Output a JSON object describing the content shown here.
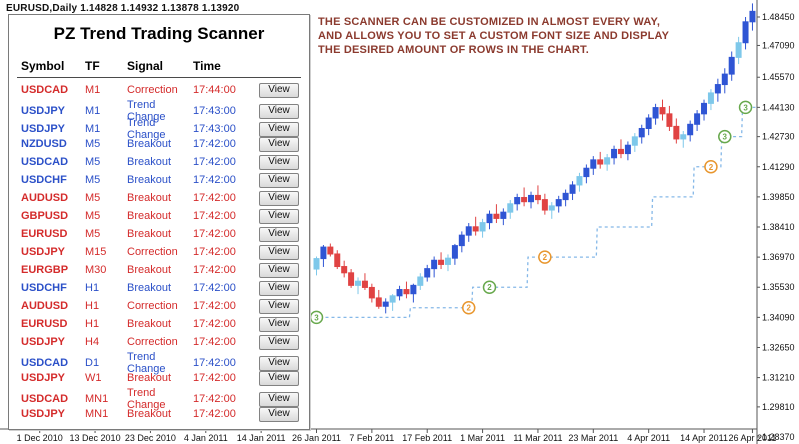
{
  "window": {
    "quote_line": "EURUSD,Daily  1.14828 1.14932 1.13878 1.13920"
  },
  "annotation": {
    "color": "#8b3a2e",
    "lines": [
      "THE SCANNER CAN BE CUSTOMIZED IN ALMOST EVERY WAY,",
      "AND ALLOWS YOU TO SET A CUSTOM FONT SIZE AND DISPLAY",
      "THE DESIRED AMOUNT OF ROWS IN THE CHART."
    ]
  },
  "scanner": {
    "title": "PZ Trend Trading Scanner",
    "columns": [
      "Symbol",
      "TF",
      "Signal",
      "Time"
    ],
    "view_label": "View",
    "colors": {
      "red": "#d42b2b",
      "blue": "#2b50c8"
    },
    "rows": [
      {
        "symbol": "USDCAD",
        "tf": "M1",
        "signal": "Correction",
        "time": "17:44:00",
        "color": "red"
      },
      {
        "symbol": "USDJPY",
        "tf": "M1",
        "signal": "Trend Change",
        "time": "17:43:00",
        "color": "blue"
      },
      {
        "symbol": "USDJPY",
        "tf": "M1",
        "signal": "Trend Change",
        "time": "17:43:00",
        "color": "blue"
      },
      {
        "symbol": "NZDUSD",
        "tf": "M5",
        "signal": "Breakout",
        "time": "17:42:00",
        "color": "blue"
      },
      {
        "symbol": "USDCAD",
        "tf": "M5",
        "signal": "Breakout",
        "time": "17:42:00",
        "color": "blue"
      },
      {
        "symbol": "USDCHF",
        "tf": "M5",
        "signal": "Breakout",
        "time": "17:42:00",
        "color": "blue"
      },
      {
        "symbol": "AUDUSD",
        "tf": "M5",
        "signal": "Breakout",
        "time": "17:42:00",
        "color": "red"
      },
      {
        "symbol": "GBPUSD",
        "tf": "M5",
        "signal": "Breakout",
        "time": "17:42:00",
        "color": "red"
      },
      {
        "symbol": "EURUSD",
        "tf": "M5",
        "signal": "Breakout",
        "time": "17:42:00",
        "color": "red"
      },
      {
        "symbol": "USDJPY",
        "tf": "M15",
        "signal": "Correction",
        "time": "17:42:00",
        "color": "red"
      },
      {
        "symbol": "EURGBP",
        "tf": "M30",
        "signal": "Breakout",
        "time": "17:42:00",
        "color": "red"
      },
      {
        "symbol": "USDCHF",
        "tf": "H1",
        "signal": "Breakout",
        "time": "17:42:00",
        "color": "blue"
      },
      {
        "symbol": "AUDUSD",
        "tf": "H1",
        "signal": "Correction",
        "time": "17:42:00",
        "color": "red"
      },
      {
        "symbol": "EURUSD",
        "tf": "H1",
        "signal": "Breakout",
        "time": "17:42:00",
        "color": "red"
      },
      {
        "symbol": "USDJPY",
        "tf": "H4",
        "signal": "Correction",
        "time": "17:42:00",
        "color": "red"
      },
      {
        "symbol": "USDCAD",
        "tf": "D1",
        "signal": "Trend Change",
        "time": "17:42:00",
        "color": "blue"
      },
      {
        "symbol": "USDJPY",
        "tf": "W1",
        "signal": "Breakout",
        "time": "17:42:00",
        "color": "red"
      },
      {
        "symbol": "USDCAD",
        "tf": "MN1",
        "signal": "Trend Change",
        "time": "17:42:00",
        "color": "red"
      },
      {
        "symbol": "USDJPY",
        "tf": "MN1",
        "signal": "Breakout",
        "time": "17:42:00",
        "color": "red"
      }
    ]
  },
  "chart_data": {
    "type": "candlestick",
    "title": "EURUSD,Daily",
    "ylim": [
      1.2837,
      1.491
    ],
    "colors": {
      "up": "#2f55d4",
      "up_light": "#7ec8ea",
      "down": "#e04343"
    },
    "price_axis": [
      "1.48450",
      "1.47090",
      "1.45570",
      "1.44130",
      "1.42730",
      "1.41290",
      "1.39850",
      "1.38410",
      "1.36970",
      "1.35530",
      "1.34090",
      "1.32650",
      "1.31210",
      "1.29810",
      "1.28370"
    ],
    "time_axis": [
      {
        "label": "1 Dec 2010",
        "i": -40
      },
      {
        "label": "13 Dec 2010",
        "i": -32
      },
      {
        "label": "23 Dec 2010",
        "i": -24
      },
      {
        "label": "4 Jan 2011",
        "i": -16
      },
      {
        "label": "14 Jan 2011",
        "i": -8
      },
      {
        "label": "26 Jan 2011",
        "i": 0
      },
      {
        "label": "7 Feb 2011",
        "i": 8
      },
      {
        "label": "17 Feb 2011",
        "i": 16
      },
      {
        "label": "1 Mar 2011",
        "i": 24
      },
      {
        "label": "11 Mar 2011",
        "i": 32
      },
      {
        "label": "23 Mar 2011",
        "i": 40
      },
      {
        "label": "4 Apr 2011",
        "i": 48
      },
      {
        "label": "14 Apr 2011",
        "i": 56
      },
      {
        "label": "26 Apr 2011",
        "i": 63
      }
    ],
    "candles": [
      [
        1.364,
        1.37,
        1.361,
        1.369,
        "lb"
      ],
      [
        1.369,
        1.3755,
        1.365,
        1.3745
      ],
      [
        1.3745,
        1.3762,
        1.37,
        1.3712
      ],
      [
        1.3712,
        1.373,
        1.364,
        1.3652
      ],
      [
        1.3652,
        1.368,
        1.36,
        1.3622
      ],
      [
        1.3622,
        1.364,
        1.355,
        1.3562
      ],
      [
        1.3562,
        1.36,
        1.352,
        1.3582,
        "lb"
      ],
      [
        1.3582,
        1.362,
        1.354,
        1.3552
      ],
      [
        1.3552,
        1.357,
        1.348,
        1.3502
      ],
      [
        1.3502,
        1.354,
        1.345,
        1.3462
      ],
      [
        1.3462,
        1.35,
        1.3428,
        1.3482
      ],
      [
        1.3482,
        1.352,
        1.344,
        1.3512,
        "lb"
      ],
      [
        1.3512,
        1.356,
        1.349,
        1.3542
      ],
      [
        1.3542,
        1.358,
        1.35,
        1.3522
      ],
      [
        1.3522,
        1.357,
        1.348,
        1.3562
      ],
      [
        1.3562,
        1.362,
        1.354,
        1.3602,
        "lb"
      ],
      [
        1.3602,
        1.366,
        1.358,
        1.3642
      ],
      [
        1.3642,
        1.37,
        1.36,
        1.3682
      ],
      [
        1.3682,
        1.372,
        1.364,
        1.3662
      ],
      [
        1.3662,
        1.371,
        1.363,
        1.3692,
        "lb"
      ],
      [
        1.3692,
        1.376,
        1.366,
        1.3752
      ],
      [
        1.3752,
        1.382,
        1.372,
        1.3802
      ],
      [
        1.3802,
        1.386,
        1.377,
        1.3842
      ],
      [
        1.3842,
        1.389,
        1.38,
        1.3822
      ],
      [
        1.3822,
        1.388,
        1.379,
        1.3862,
        "lb"
      ],
      [
        1.3862,
        1.392,
        1.383,
        1.3902
      ],
      [
        1.3902,
        1.395,
        1.386,
        1.3882
      ],
      [
        1.3882,
        1.393,
        1.385,
        1.3912
      ],
      [
        1.3912,
        1.397,
        1.388,
        1.3952,
        "lb"
      ],
      [
        1.3952,
        1.4,
        1.392,
        1.3982
      ],
      [
        1.3982,
        1.403,
        1.394,
        1.3962
      ],
      [
        1.3962,
        1.401,
        1.393,
        1.3992
      ],
      [
        1.3992,
        1.404,
        1.395,
        1.3972
      ],
      [
        1.3972,
        1.4,
        1.39,
        1.3922
      ],
      [
        1.3922,
        1.396,
        1.388,
        1.3942,
        "lb"
      ],
      [
        1.3942,
        1.399,
        1.391,
        1.3972
      ],
      [
        1.3972,
        1.402,
        1.394,
        1.4002
      ],
      [
        1.4002,
        1.406,
        1.397,
        1.4042
      ],
      [
        1.4042,
        1.41,
        1.401,
        1.4082,
        "lb"
      ],
      [
        1.4082,
        1.414,
        1.405,
        1.4122
      ],
      [
        1.4122,
        1.418,
        1.409,
        1.4162
      ],
      [
        1.4162,
        1.42,
        1.412,
        1.4142
      ],
      [
        1.4142,
        1.419,
        1.411,
        1.4172,
        "lb"
      ],
      [
        1.4172,
        1.423,
        1.414,
        1.4212
      ],
      [
        1.4212,
        1.426,
        1.417,
        1.4192
      ],
      [
        1.4192,
        1.425,
        1.416,
        1.4232
      ],
      [
        1.4232,
        1.429,
        1.42,
        1.4272,
        "lb"
      ],
      [
        1.4272,
        1.433,
        1.424,
        1.4312
      ],
      [
        1.4312,
        1.438,
        1.428,
        1.4362
      ],
      [
        1.4362,
        1.443,
        1.433,
        1.4412
      ],
      [
        1.4412,
        1.445,
        1.435,
        1.4382
      ],
      [
        1.4382,
        1.442,
        1.43,
        1.4322
      ],
      [
        1.4322,
        1.436,
        1.424,
        1.4262
      ],
      [
        1.4262,
        1.43,
        1.422,
        1.4282,
        "lb"
      ],
      [
        1.4282,
        1.435,
        1.425,
        1.4332
      ],
      [
        1.4332,
        1.44,
        1.43,
        1.4382
      ],
      [
        1.4382,
        1.445,
        1.435,
        1.4432
      ],
      [
        1.4432,
        1.45,
        1.44,
        1.4482,
        "lb"
      ],
      [
        1.4482,
        1.455,
        1.444,
        1.4522
      ],
      [
        1.4522,
        1.46,
        1.448,
        1.4572
      ],
      [
        1.4572,
        1.468,
        1.454,
        1.4652
      ],
      [
        1.4652,
        1.475,
        1.462,
        1.4722,
        "lb"
      ],
      [
        1.4722,
        1.4845,
        1.469,
        1.4822
      ],
      [
        1.4822,
        1.491,
        1.478,
        1.4872
      ]
    ],
    "trail": {
      "color": "#85b8e8",
      "steps": [
        {
          "from": 0,
          "to": 13,
          "price": 1.3409
        },
        {
          "from": 14,
          "to": 22,
          "price": 1.3455
        },
        {
          "from": 23,
          "to": 30,
          "price": 1.3553
        },
        {
          "from": 31,
          "to": 40,
          "price": 1.3697
        },
        {
          "from": 41,
          "to": 48,
          "price": 1.3841
        },
        {
          "from": 49,
          "to": 54,
          "price": 1.3985
        },
        {
          "from": 55,
          "to": 58,
          "price": 1.4129
        },
        {
          "from": 59,
          "to": 61,
          "price": 1.4273
        },
        {
          "from": 62,
          "to": 63,
          "price": 1.4413
        }
      ]
    },
    "markers": [
      {
        "idx": 0,
        "price": 1.3409,
        "label": "3",
        "color": "#67a84c"
      },
      {
        "idx": 22,
        "price": 1.3455,
        "label": "2",
        "color": "#e8962e"
      },
      {
        "idx": 25,
        "price": 1.3553,
        "label": "2",
        "color": "#67a84c"
      },
      {
        "idx": 33,
        "price": 1.3697,
        "label": "2",
        "color": "#e8962e"
      },
      {
        "idx": 57,
        "price": 1.4129,
        "label": "2",
        "color": "#e8962e"
      },
      {
        "idx": 59,
        "price": 1.4273,
        "label": "3",
        "color": "#67a84c"
      },
      {
        "idx": 62,
        "price": 1.4413,
        "label": "3",
        "color": "#67a84c"
      }
    ]
  }
}
